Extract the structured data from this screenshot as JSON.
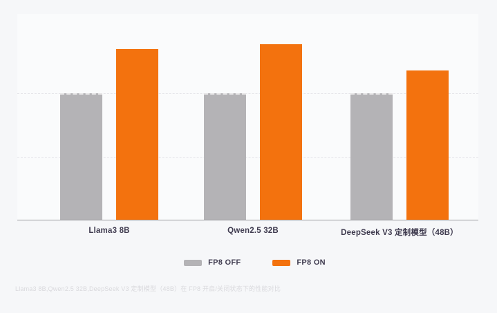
{
  "figure": {
    "caption": "Llama3 8B,Qwen2.5 32B,DeepSeek V3 定制模型（48B）在 FP8 开启/关闭状态下的性能对比"
  },
  "legend": {
    "items": [
      {
        "label": "FP8 OFF",
        "color": "#b4b3b6"
      },
      {
        "label": "FP8 ON",
        "color": "#f3720e"
      }
    ]
  },
  "chart_data": {
    "type": "bar",
    "categories": [
      "Llama3 8B",
      "Qwen2.5 32B",
      "DeepSeek V3 定制模型（48B）"
    ],
    "series": [
      {
        "name": "FP8 OFF",
        "color": "#b4b3b6",
        "values": [
          1.0,
          1.0,
          1.0
        ]
      },
      {
        "name": "FP8 ON",
        "color": "#f3720e",
        "values": [
          1.35,
          1.39,
          1.18
        ]
      }
    ],
    "title": "",
    "xlabel": "",
    "ylabel": "",
    "ylim": [
      0,
      1.6
    ],
    "gridline_values": [
      0.5,
      1.0
    ],
    "grid": "horizontal-dashed",
    "legend_position": "bottom"
  },
  "colors": {
    "background": "#f6f7f9",
    "axis": "#97979c",
    "label_text": "#3f3b4f",
    "caption_text": "#d9d9dd"
  }
}
